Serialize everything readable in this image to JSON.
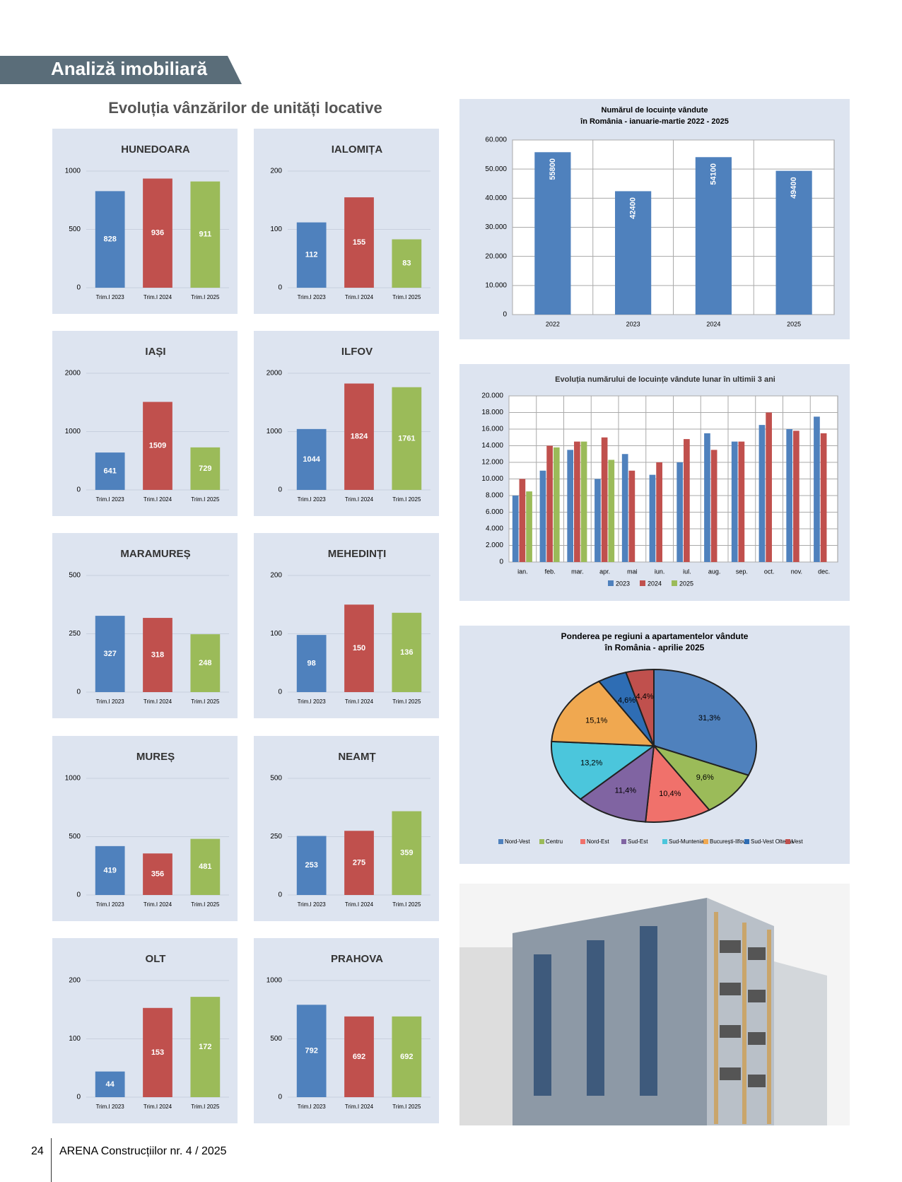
{
  "header": {
    "section": "Analiză imobiliară",
    "title": "Evoluția vânzărilor de unități locative"
  },
  "footer": {
    "page": "24",
    "publication": "ARENA Construcțiilor nr. 4 / 2025"
  },
  "chart_data": [
    {
      "type": "bar",
      "title": "HUNEDOARA",
      "categories": [
        "Trim.I 2023",
        "Trim.I 2024",
        "Trim.I 2025"
      ],
      "values": [
        828,
        936,
        911
      ],
      "colors": [
        "#4f81bd",
        "#c0504d",
        "#9bbb59"
      ],
      "ylim": [
        0,
        1000
      ],
      "yticks": [
        0,
        500,
        1000
      ]
    },
    {
      "type": "bar",
      "title": "IALOMIȚA",
      "categories": [
        "Trim.I 2023",
        "Trim.I 2024",
        "Trim.I 2025"
      ],
      "values": [
        112,
        155,
        83
      ],
      "colors": [
        "#4f81bd",
        "#c0504d",
        "#9bbb59"
      ],
      "ylim": [
        0,
        200
      ],
      "yticks": [
        0,
        100,
        200
      ]
    },
    {
      "type": "bar",
      "title": "IAȘI",
      "categories": [
        "Trim.I 2023",
        "Trim.I 2024",
        "Trim.I 2025"
      ],
      "values": [
        641,
        1509,
        729
      ],
      "colors": [
        "#4f81bd",
        "#c0504d",
        "#9bbb59"
      ],
      "ylim": [
        0,
        2000
      ],
      "yticks": [
        0,
        1000,
        2000
      ]
    },
    {
      "type": "bar",
      "title": "ILFOV",
      "categories": [
        "Trim.I 2023",
        "Trim.I 2024",
        "Trim.I 2025"
      ],
      "values": [
        1044,
        1824,
        1761
      ],
      "colors": [
        "#4f81bd",
        "#c0504d",
        "#9bbb59"
      ],
      "ylim": [
        0,
        2000
      ],
      "yticks": [
        0,
        1000,
        2000
      ]
    },
    {
      "type": "bar",
      "title": "MARAMUREȘ",
      "categories": [
        "Trim.I 2023",
        "Trim.I 2024",
        "Trim.I 2025"
      ],
      "values": [
        327,
        318,
        248
      ],
      "colors": [
        "#4f81bd",
        "#c0504d",
        "#9bbb59"
      ],
      "ylim": [
        0,
        500
      ],
      "yticks": [
        0,
        250,
        500
      ]
    },
    {
      "type": "bar",
      "title": "MEHEDINȚI",
      "categories": [
        "Trim.I 2023",
        "Trim.I 2024",
        "Trim.I 2025"
      ],
      "values": [
        98,
        150,
        136
      ],
      "colors": [
        "#4f81bd",
        "#c0504d",
        "#9bbb59"
      ],
      "ylim": [
        0,
        200
      ],
      "yticks": [
        0,
        100,
        200
      ]
    },
    {
      "type": "bar",
      "title": "MUREȘ",
      "categories": [
        "Trim.I 2023",
        "Trim.I 2024",
        "Trim.I 2025"
      ],
      "values": [
        419,
        356,
        481
      ],
      "colors": [
        "#4f81bd",
        "#c0504d",
        "#9bbb59"
      ],
      "ylim": [
        0,
        1000
      ],
      "yticks": [
        0,
        500,
        1000
      ]
    },
    {
      "type": "bar",
      "title": "NEAMȚ",
      "categories": [
        "Trim.I 2023",
        "Trim.I 2024",
        "Trim.I 2025"
      ],
      "values": [
        253,
        275,
        359
      ],
      "colors": [
        "#4f81bd",
        "#c0504d",
        "#9bbb59"
      ],
      "ylim": [
        0,
        500
      ],
      "yticks": [
        0,
        250,
        500
      ]
    },
    {
      "type": "bar",
      "title": "OLT",
      "categories": [
        "Trim.I 2023",
        "Trim.I 2024",
        "Trim.I 2025"
      ],
      "values": [
        44,
        153,
        172
      ],
      "colors": [
        "#4f81bd",
        "#c0504d",
        "#9bbb59"
      ],
      "ylim": [
        0,
        200
      ],
      "yticks": [
        0,
        100,
        200
      ]
    },
    {
      "type": "bar",
      "title": "PRAHOVA",
      "categories": [
        "Trim.I 2023",
        "Trim.I 2024",
        "Trim.I 2025"
      ],
      "values": [
        792,
        692,
        692
      ],
      "colors": [
        "#4f81bd",
        "#c0504d",
        "#9bbb59"
      ],
      "ylim": [
        0,
        1000
      ],
      "yticks": [
        0,
        500,
        1000
      ]
    },
    {
      "type": "bar",
      "title": "Numărul de locuințe vândute",
      "subtitle": "în România - ianuarie-martie 2022 - 2025",
      "categories": [
        "2022",
        "2023",
        "2024",
        "2025"
      ],
      "values": [
        55800,
        42400,
        54100,
        49400
      ],
      "colors": [
        "#4f81bd",
        "#4f81bd",
        "#4f81bd",
        "#4f81bd"
      ],
      "ylim": [
        0,
        60000
      ],
      "yticks": [
        0,
        {
          "value": 10000,
          "label": "10.000"
        },
        {
          "value": 20000,
          "label": "20.000"
        },
        {
          "value": 30000,
          "label": "30.000"
        },
        {
          "value": 40000,
          "label": "40.000"
        },
        {
          "value": 50000,
          "label": "50.000"
        },
        {
          "value": 60000,
          "label": "60.000"
        }
      ],
      "grid": true
    },
    {
      "type": "grouped",
      "title": "Evoluția numărului de locuințe vândute lunar în ultimii 3 ani",
      "categories": [
        "ian.",
        "feb.",
        "mar.",
        "apr.",
        "mai",
        "iun.",
        "iul.",
        "aug.",
        "sep.",
        "oct.",
        "nov.",
        "dec."
      ],
      "series": [
        {
          "name": "2023",
          "color": "#4f81bd",
          "values": [
            8000,
            11000,
            13500,
            10000,
            13000,
            10500,
            12000,
            15500,
            14500,
            16500,
            16000,
            17500
          ]
        },
        {
          "name": "2024",
          "color": "#c0504d",
          "values": [
            10000,
            14000,
            14500,
            15000,
            11000,
            12000,
            14800,
            13500,
            14500,
            18000,
            15800,
            15500
          ]
        },
        {
          "name": "2025",
          "color": "#9bbb59",
          "values": [
            8500,
            13800,
            14500,
            12300,
            null,
            null,
            null,
            null,
            null,
            null,
            null,
            null
          ]
        }
      ],
      "ylim": [
        0,
        20000
      ],
      "yticks": [
        0,
        {
          "value": 2000,
          "label": "2.000"
        },
        {
          "value": 4000,
          "label": "4.000"
        },
        {
          "value": 6000,
          "label": "6.000"
        },
        {
          "value": 8000,
          "label": "8.000"
        },
        {
          "value": 10000,
          "label": "10.000"
        },
        {
          "value": 12000,
          "label": "12.000"
        },
        {
          "value": 14000,
          "label": "14.000"
        },
        {
          "value": 16000,
          "label": "16.000"
        },
        {
          "value": 18000,
          "label": "18.000"
        },
        {
          "value": 20000,
          "label": "20.000"
        }
      ],
      "grid": true
    },
    {
      "type": "pie",
      "title": "Ponderea pe regiuni a apartamentelor vândute",
      "subtitle": "în România - aprilie 2025",
      "categories": [
        "Nord-Vest",
        "Centru",
        "Nord-Est",
        "Sud-Est",
        "Sud-Muntenia",
        "București-Ilfov",
        "Sud-Vest Oltenia",
        "Vest"
      ],
      "values": [
        31.3,
        9.6,
        10.4,
        11.4,
        13.2,
        15.1,
        4.6,
        4.4
      ],
      "value_labels": [
        "31,3%",
        "9,6%",
        "10,4%",
        "11,4%",
        "13,2%",
        "15,1%",
        "4,6%",
        "4,4%"
      ],
      "colors": [
        "#4f81bd",
        "#9bbb59",
        "#f0716b",
        "#8064a2",
        "#4bc6dc",
        "#f0a850",
        "#2e6db4",
        "#c0504d"
      ]
    }
  ]
}
